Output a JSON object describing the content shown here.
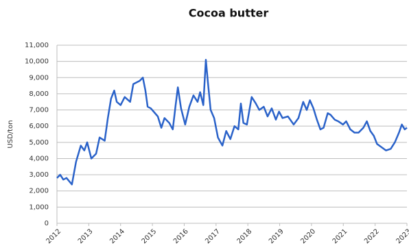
{
  "chart_data": {
    "type": "line",
    "title": "Cocoa butter",
    "y_label": "USD/ton",
    "x": [
      2012.0,
      2012.1,
      2012.2,
      2012.3,
      2012.47,
      2012.6,
      2012.75,
      2012.86,
      2012.95,
      2013.08,
      2013.23,
      2013.34,
      2013.5,
      2013.6,
      2013.7,
      2013.8,
      2013.88,
      2014.0,
      2014.13,
      2014.3,
      2014.4,
      2014.6,
      2014.7,
      2014.78,
      2014.85,
      2014.95,
      2015.17,
      2015.28,
      2015.38,
      2015.53,
      2015.64,
      2015.73,
      2015.8,
      2015.9,
      2016.03,
      2016.16,
      2016.29,
      2016.42,
      2016.5,
      2016.6,
      2016.68,
      2016.74,
      2016.83,
      2016.94,
      2017.06,
      2017.2,
      2017.32,
      2017.45,
      2017.58,
      2017.7,
      2017.78,
      2017.86,
      2017.97,
      2018.12,
      2018.25,
      2018.36,
      2018.5,
      2018.62,
      2018.75,
      2018.88,
      2018.98,
      2019.09,
      2019.26,
      2019.44,
      2019.59,
      2019.74,
      2019.85,
      2019.95,
      2020.06,
      2020.17,
      2020.28,
      2020.38,
      2020.51,
      2020.6,
      2020.73,
      2020.84,
      2020.99,
      2021.09,
      2021.22,
      2021.35,
      2021.48,
      2021.63,
      2021.74,
      2021.85,
      2021.96,
      2022.06,
      2022.2,
      2022.34,
      2022.49,
      2022.62,
      2022.75,
      2022.84,
      2022.93,
      2023.0
    ],
    "series": [
      {
        "name": "Cocoa butter",
        "color": "#2a62c9",
        "values": [
          2800,
          3000,
          2700,
          2800,
          2400,
          3800,
          4800,
          4500,
          5000,
          4000,
          4300,
          5300,
          5100,
          6500,
          7700,
          8200,
          7500,
          7300,
          7800,
          7500,
          8600,
          8800,
          9000,
          8200,
          7200,
          7100,
          6600,
          5900,
          6500,
          6200,
          5800,
          7300,
          8400,
          7100,
          6100,
          7200,
          7900,
          7500,
          8100,
          7300,
          10100,
          8800,
          7000,
          6500,
          5300,
          4800,
          5700,
          5200,
          6000,
          5800,
          7400,
          6200,
          6100,
          7800,
          7400,
          7000,
          7200,
          6600,
          7100,
          6400,
          6900,
          6500,
          6600,
          6100,
          6500,
          7500,
          7000,
          7600,
          7100,
          6400,
          5800,
          5900,
          6800,
          6700,
          6400,
          6300,
          6100,
          6300,
          5800,
          5600,
          5600,
          5900,
          6300,
          5700,
          5400,
          4900,
          4700,
          4500,
          4600,
          5000,
          5600,
          6100,
          5800,
          5900
        ]
      }
    ],
    "xlim": [
      2012,
      2023
    ],
    "xticks": [
      2012,
      2013,
      2014,
      2015,
      2016,
      2017,
      2018,
      2019,
      2020,
      2021,
      2022,
      2023
    ],
    "ylim": [
      0,
      11000
    ],
    "yticks": [
      0,
      {
        "value": 1000,
        "label": "1,000"
      },
      {
        "value": 2000,
        "label": "2,000"
      },
      {
        "value": 3000,
        "label": "3,000"
      },
      {
        "value": 4000,
        "label": "4,000"
      },
      {
        "value": 5000,
        "label": "5,000"
      },
      {
        "value": 6000,
        "label": "6,000"
      },
      {
        "value": 7000,
        "label": "7,000"
      },
      {
        "value": 8000,
        "label": "8,000"
      },
      {
        "value": 9000,
        "label": "9,000"
      },
      {
        "value": 10000,
        "label": "10,000"
      },
      {
        "value": 11000,
        "label": "11,000"
      }
    ],
    "grid": true
  }
}
